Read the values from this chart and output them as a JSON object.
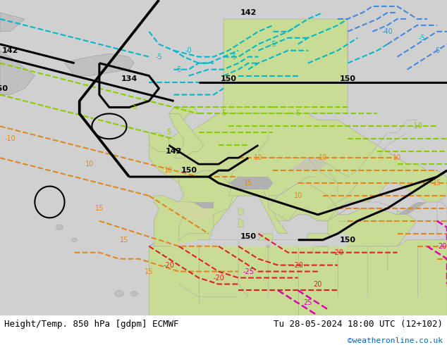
{
  "title_left": "Height/Temp. 850 hPa [gdpm] ECMWF",
  "title_right": "Tu 28-05-2024 18:00 UTC (12+102)",
  "credit": "©weatheronline.co.uk",
  "credit_color": "#0066cc",
  "footer_text_color": "#000000",
  "title_fontsize": 9,
  "credit_fontsize": 8,
  "figsize": [
    6.34,
    4.9
  ],
  "dpi": 100,
  "ocean_color": "#d0d0d0",
  "land_color": "#c8dc96",
  "mountain_color": "#b0b0b0",
  "gray_land_color": "#c0c0c0"
}
